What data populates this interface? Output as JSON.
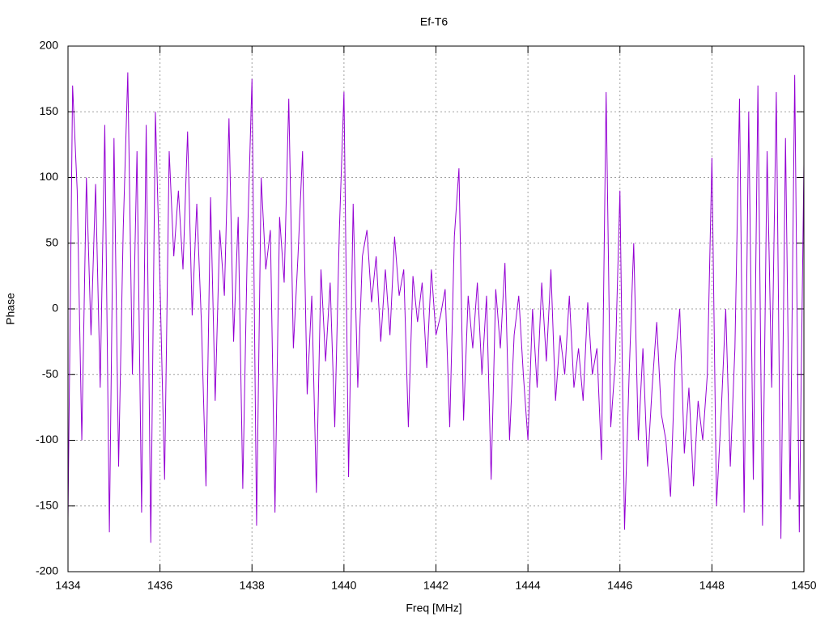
{
  "chart_data": {
    "type": "line",
    "title": "Ef-T6",
    "xlabel": "Freq [MHz]",
    "ylabel": "Phase",
    "xlim": [
      1434,
      1450
    ],
    "xticks": [
      1434,
      1436,
      1438,
      1440,
      1442,
      1444,
      1446,
      1448,
      1450
    ],
    "ylim": [
      -200,
      200
    ],
    "yticks": [
      -200,
      -150,
      -100,
      -50,
      0,
      50,
      100,
      150,
      200
    ],
    "grid": true,
    "x": [
      1434,
      1434.1,
      1434.2,
      1434.3,
      1434.4,
      1434.5,
      1434.6,
      1434.7,
      1434.8,
      1434.9,
      1435,
      1435.1,
      1435.2,
      1435.3,
      1435.4,
      1435.5,
      1435.6,
      1435.7,
      1435.8,
      1435.9,
      1436,
      1436.1,
      1436.2,
      1436.3,
      1436.4,
      1436.5,
      1436.6,
      1436.7,
      1436.8,
      1436.9,
      1437,
      1437.1,
      1437.2,
      1437.3,
      1437.4,
      1437.5,
      1437.6,
      1437.7,
      1437.8,
      1437.9,
      1438,
      1438.1,
      1438.2,
      1438.3,
      1438.4,
      1438.5,
      1438.6,
      1438.7,
      1438.8,
      1438.9,
      1439,
      1439.1,
      1439.2,
      1439.3,
      1439.4,
      1439.5,
      1439.6,
      1439.7,
      1439.8,
      1439.9,
      1440,
      1440.1,
      1440.2,
      1440.3,
      1440.4,
      1440.5,
      1440.6,
      1440.7,
      1440.8,
      1440.9,
      1441,
      1441.1,
      1441.2,
      1441.3,
      1441.4,
      1441.5,
      1441.6,
      1441.7,
      1441.8,
      1441.9,
      1442,
      1442.1,
      1442.2,
      1442.3,
      1442.4,
      1442.5,
      1442.6,
      1442.7,
      1442.8,
      1442.9,
      1443,
      1443.1,
      1443.2,
      1443.3,
      1443.4,
      1443.5,
      1443.6,
      1443.7,
      1443.8,
      1443.9,
      1444,
      1444.1,
      1444.2,
      1444.3,
      1444.4,
      1444.5,
      1444.6,
      1444.7,
      1444.8,
      1444.9,
      1445,
      1445.1,
      1445.2,
      1445.3,
      1445.4,
      1445.5,
      1445.6,
      1445.7,
      1445.8,
      1445.9,
      1446,
      1446.1,
      1446.2,
      1446.3,
      1446.4,
      1446.5,
      1446.6,
      1446.7,
      1446.8,
      1446.9,
      1447,
      1447.1,
      1447.2,
      1447.3,
      1447.4,
      1447.5,
      1447.6,
      1447.7,
      1447.8,
      1447.9,
      1448,
      1448.1,
      1448.2,
      1448.3,
      1448.4,
      1448.5,
      1448.6,
      1448.7,
      1448.8,
      1448.9,
      1449,
      1449.1,
      1449.2,
      1449.3,
      1449.4,
      1449.5,
      1449.6,
      1449.7,
      1449.8,
      1449.9,
      1450
    ],
    "series": [
      {
        "color": "#9400d3",
        "values": [
          -160,
          170,
          90,
          -100,
          100,
          -20,
          95,
          -60,
          140,
          -170,
          130,
          -120,
          60,
          180,
          -50,
          120,
          -155,
          140,
          -178,
          150,
          20,
          -130,
          120,
          40,
          90,
          30,
          135,
          -5,
          80,
          -10,
          -135,
          85,
          -70,
          60,
          10,
          145,
          -25,
          70,
          -137,
          50,
          175,
          -165,
          100,
          30,
          60,
          -155,
          70,
          20,
          160,
          -30,
          40,
          120,
          -65,
          10,
          -140,
          30,
          -40,
          20,
          -90,
          60,
          165,
          -128,
          80,
          -60,
          40,
          60,
          5,
          40,
          -25,
          30,
          -20,
          55,
          10,
          30,
          -90,
          25,
          -10,
          20,
          -45,
          30,
          -20,
          -5,
          15,
          -90,
          55,
          107,
          -85,
          10,
          -30,
          20,
          -50,
          10,
          -130,
          15,
          -30,
          35,
          -100,
          -20,
          10,
          -50,
          -100,
          0,
          -60,
          20,
          -40,
          30,
          -70,
          -20,
          -50,
          10,
          -60,
          -30,
          -70,
          5,
          -50,
          -30,
          -115,
          165,
          -90,
          -40,
          90,
          -168,
          -50,
          50,
          -100,
          -30,
          -120,
          -60,
          -10,
          -80,
          -100,
          -143,
          -40,
          0,
          -110,
          -60,
          -135,
          -70,
          -100,
          -50,
          115,
          -150,
          -80,
          0,
          -120,
          -30,
          160,
          -155,
          150,
          -130,
          170,
          -165,
          120,
          -60,
          165,
          -175,
          130,
          -145,
          178,
          -170,
          110
        ]
      }
    ]
  }
}
